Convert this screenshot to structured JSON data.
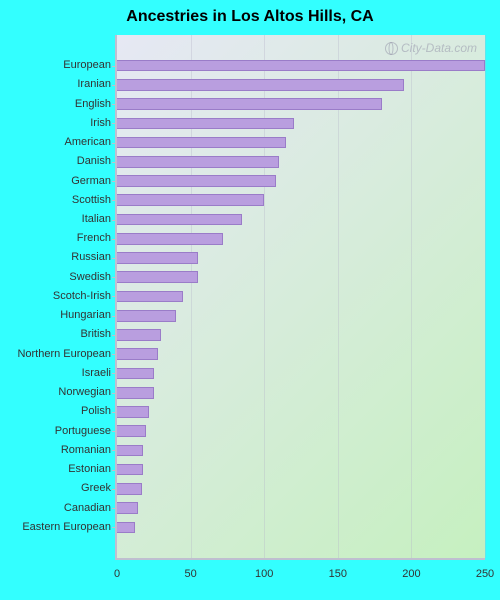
{
  "title": "Ancestries in Los Altos Hills, CA",
  "watermark": "City-Data.com",
  "page_background": "#33ffff",
  "chart": {
    "type": "bar-horizontal",
    "background_gradient": {
      "top_left": "#e6e8f4",
      "bottom_right": "#c6f0c0"
    },
    "bar_color": "#b99edf",
    "bar_border": "#9a7cc8",
    "grid_color": "rgba(180,180,200,0.35)",
    "axis_color": "#bfbfd0",
    "label_fontsize": 11,
    "title_fontsize": 16,
    "y_label_width": 105,
    "xlim": [
      0,
      250
    ],
    "xtick_step": 50,
    "xticks": [
      0,
      50,
      100,
      150,
      200,
      250
    ],
    "bar_height_ratio": 0.6,
    "categories": [
      "European",
      "Iranian",
      "English",
      "Irish",
      "American",
      "Danish",
      "German",
      "Scottish",
      "Italian",
      "French",
      "Russian",
      "Swedish",
      "Scotch-Irish",
      "Hungarian",
      "British",
      "Northern European",
      "Israeli",
      "Norwegian",
      "Polish",
      "Portuguese",
      "Romanian",
      "Estonian",
      "Greek",
      "Canadian",
      "Eastern European"
    ],
    "values": [
      250,
      195,
      180,
      120,
      115,
      110,
      108,
      100,
      85,
      72,
      55,
      55,
      45,
      40,
      30,
      28,
      25,
      25,
      22,
      20,
      18,
      18,
      17,
      14,
      12
    ]
  }
}
